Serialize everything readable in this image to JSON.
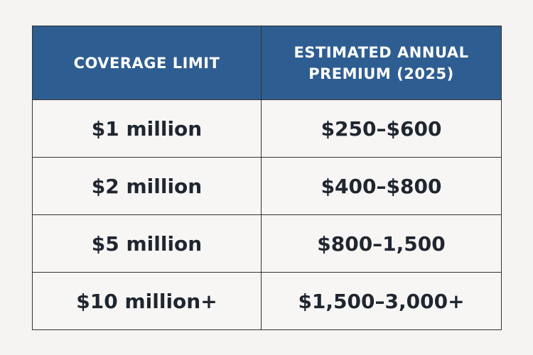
{
  "table": {
    "headers": [
      {
        "lines": [
          "COVERAGE LIMIT"
        ]
      },
      {
        "lines": [
          "ESTIMATED ANNUAL",
          "PREMIUM (2025)"
        ]
      }
    ],
    "rows": [
      {
        "coverage": "$1 million",
        "premium": "$250–$600"
      },
      {
        "coverage": "$2 million",
        "premium": "$400–$800"
      },
      {
        "coverage": "$5 million",
        "premium": "$800–1,500"
      },
      {
        "coverage": "$10 million+",
        "premium": "$1,500–3,000+"
      }
    ]
  },
  "colors": {
    "header_bg": "#2e5d91",
    "header_text": "#ffffff",
    "cell_bg": "#f7f6f4",
    "cell_text": "#1f2630",
    "border": "#333333",
    "page_bg": "#f5f4f2"
  }
}
